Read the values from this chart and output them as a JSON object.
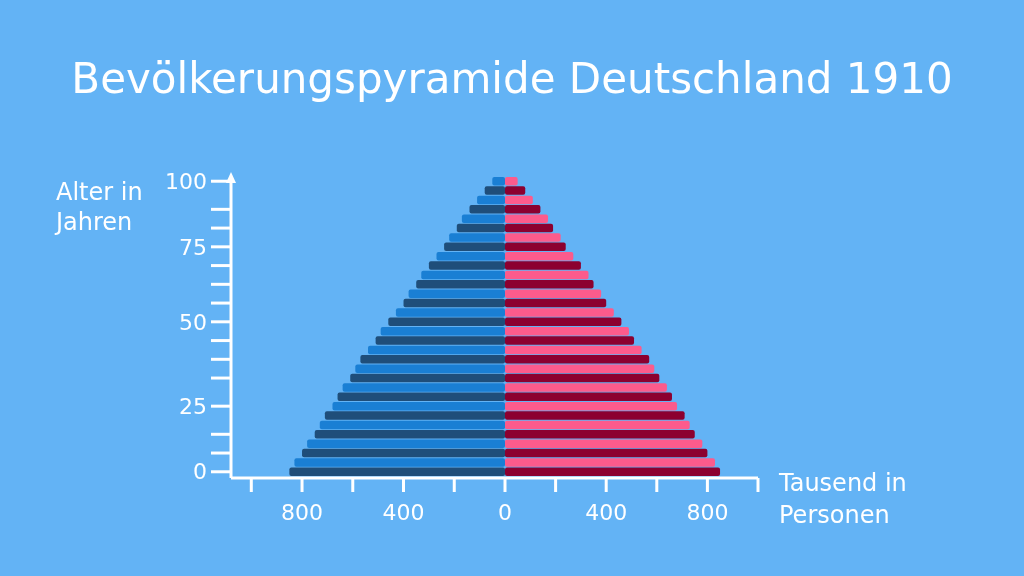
{
  "chart_data": [
    {
      "type": "bar",
      "orientation": "horizontal",
      "title": "Bevölkerungspyramide Deutschland 1910",
      "ylabel": "Alter in Jahren",
      "categories": [
        "100",
        null,
        null,
        null,
        null,
        null,
        null,
        "75",
        null,
        null,
        null,
        null,
        null,
        null,
        null,
        "50",
        null,
        null,
        null,
        null,
        null,
        null,
        null,
        null,
        "25",
        null,
        null,
        null,
        null,
        null,
        null,
        "0"
      ],
      "series": [
        {
          "colors": [
            "#1a7fd4",
            "#1f4e7a",
            "#1a7fd4",
            "#1f4e7a",
            "#1a7fd4",
            "#1f4e7a",
            "#1a7fd4",
            "#1f4e7a",
            "#1a7fd4",
            "#1f4e7a",
            "#1a7fd4",
            "#1f4e7a",
            "#1a7fd4",
            "#1f4e7a",
            "#1a7fd4",
            "#1f4e7a",
            "#1a7fd4",
            "#1f4e7a",
            "#1a7fd4",
            "#1f4e7a",
            "#1a7fd4",
            "#1f4e7a",
            "#1a7fd4",
            "#1f4e7a",
            "#1a7fd4",
            "#1f4e7a",
            "#1a7fd4",
            "#1f4e7a",
            "#1a7fd4",
            "#1f4e7a",
            "#1a7fd4",
            "#1f4e7a"
          ],
          "values": [
            50,
            80,
            110,
            140,
            170,
            190,
            220,
            240,
            270,
            300,
            330,
            350,
            380,
            400,
            430,
            460,
            490,
            510,
            540,
            570,
            590,
            610,
            640,
            660,
            680,
            710,
            730,
            750,
            780,
            800,
            830,
            850
          ]
        }
      ],
      "xlim": [
        1080,
        0
      ],
      "xticks": [
        {
          "value": 1000,
          "label": null
        },
        800,
        {
          "value": 600,
          "label": null
        },
        400,
        {
          "value": 200,
          "label": null
        }
      ],
      "grid": false,
      "legend": false
    },
    {
      "type": "bar",
      "orientation": "horizontal",
      "xlabel": "Tausend in Personen",
      "categories": [
        null,
        null,
        null,
        null,
        null,
        null,
        null,
        null,
        null,
        null,
        null,
        null,
        null,
        null,
        null,
        null,
        null,
        null,
        null,
        null,
        null,
        null,
        null,
        null,
        null,
        null,
        null,
        null,
        null,
        null,
        null,
        null
      ],
      "series": [
        {
          "colors": [
            "#fc5b8c",
            "#8c0030",
            "#fc5b8c",
            "#8c0030",
            "#fc5b8c",
            "#8c0030",
            "#fc5b8c",
            "#8c0030",
            "#fc5b8c",
            "#8c0030",
            "#fc5b8c",
            "#8c0030",
            "#fc5b8c",
            "#8c0030",
            "#fc5b8c",
            "#8c0030",
            "#fc5b8c",
            "#8c0030",
            "#fc5b8c",
            "#8c0030",
            "#fc5b8c",
            "#8c0030",
            "#fc5b8c",
            "#8c0030",
            "#fc5b8c",
            "#8c0030",
            "#fc5b8c",
            "#8c0030",
            "#fc5b8c",
            "#8c0030",
            "#fc5b8c",
            "#8c0030"
          ],
          "values": [
            50,
            80,
            110,
            140,
            170,
            190,
            220,
            240,
            270,
            300,
            330,
            350,
            380,
            400,
            430,
            460,
            490,
            510,
            540,
            570,
            590,
            610,
            640,
            660,
            680,
            710,
            730,
            750,
            780,
            800,
            830,
            850
          ]
        }
      ],
      "xlim": [
        0,
        1000
      ],
      "xticks": [
        0,
        {
          "value": 200,
          "label": null
        },
        400,
        {
          "value": 600,
          "label": null
        },
        800,
        {
          "value": 1000,
          "label": null
        }
      ],
      "tick_labels": "x",
      "grid": false,
      "legend": false
    }
  ]
}
